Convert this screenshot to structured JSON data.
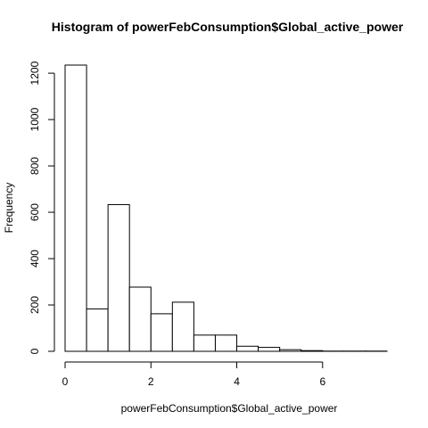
{
  "chart_data": {
    "type": "bar",
    "title": "Histogram of powerFebConsumption$Global_active_power",
    "xlabel": "powerFebConsumption$Global_active_power",
    "ylabel": "Frequency",
    "bin_edges": [
      0,
      0.5,
      1,
      1.5,
      2,
      2.5,
      3,
      3.5,
      4,
      4.5,
      5,
      5.5,
      6,
      6.5,
      7,
      7.5
    ],
    "values": [
      1235,
      183,
      633,
      277,
      162,
      212,
      70,
      70,
      22,
      17,
      7,
      3,
      1,
      1,
      1
    ],
    "xlim": [
      0,
      7.5
    ],
    "ylim": [
      0,
      1235
    ],
    "x_ticks": [
      0,
      2,
      4,
      6
    ],
    "x_tick_labels": [
      "0",
      "2",
      "4",
      "6"
    ],
    "y_ticks": [
      0,
      200,
      400,
      600,
      800,
      1000,
      1200
    ],
    "y_tick_labels": [
      "0",
      "200",
      "400",
      "600",
      "800",
      "1000",
      "1200"
    ],
    "grid": false,
    "bar_fill": "#ffffff",
    "bar_stroke": "#000000"
  }
}
